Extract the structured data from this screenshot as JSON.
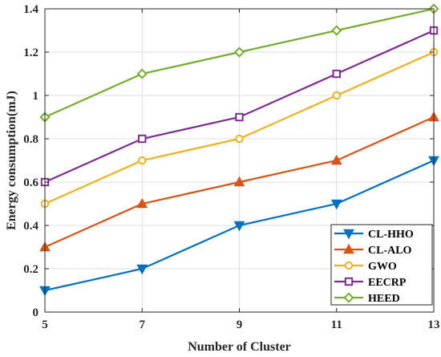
{
  "chart_data": {
    "type": "line",
    "title": "",
    "xlabel": "Number of Cluster",
    "ylabel": "Energy consumption(mJ)",
    "x": [
      5,
      7,
      9,
      11,
      13
    ],
    "xlim": [
      5,
      13
    ],
    "ylim": [
      0,
      1.4
    ],
    "xticks": [
      "5",
      "7",
      "9",
      "11",
      "13"
    ],
    "yticks": [
      "0",
      "0.2",
      "0.4",
      "0.6",
      "0.8",
      "1",
      "1.2",
      "1.4"
    ],
    "grid": true,
    "legend_position": "bottom-right",
    "series": [
      {
        "name": "CL-HHO",
        "values": [
          0.1,
          0.2,
          0.4,
          0.5,
          0.7
        ],
        "color": "#0072BD",
        "marker": "triangle-down"
      },
      {
        "name": "CL-ALO",
        "values": [
          0.3,
          0.5,
          0.6,
          0.7,
          0.9
        ],
        "color": "#D95319",
        "marker": "triangle-up"
      },
      {
        "name": "GWO",
        "values": [
          0.5,
          0.7,
          0.8,
          1.0,
          1.2
        ],
        "color": "#EDB120",
        "marker": "circle"
      },
      {
        "name": "EECRP",
        "values": [
          0.6,
          0.8,
          0.9,
          1.1,
          1.3
        ],
        "color": "#7E2F8E",
        "marker": "square"
      },
      {
        "name": "HEED",
        "values": [
          0.9,
          1.1,
          1.2,
          1.3,
          1.4
        ],
        "color": "#77AC30",
        "marker": "diamond"
      }
    ]
  }
}
